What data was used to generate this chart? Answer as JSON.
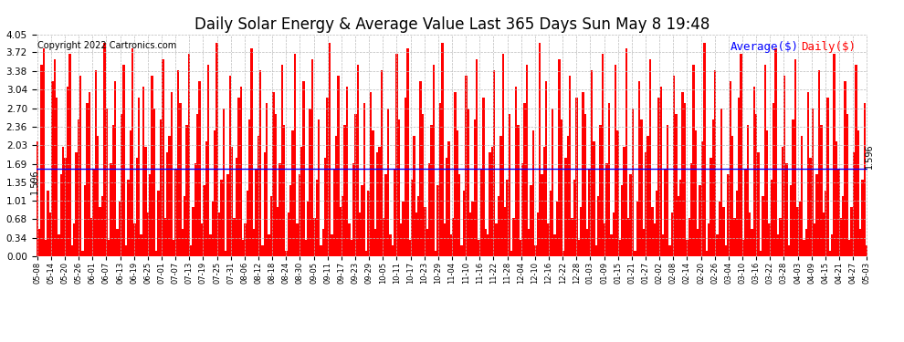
{
  "title": "Daily Solar Energy & Average Value Last 365 Days Sun May 8 19:48",
  "copyright": "Copyright 2022 Cartronics.com",
  "average_value": 1.596,
  "ylim": [
    0.0,
    4.05
  ],
  "yticks": [
    0.0,
    0.34,
    0.68,
    1.01,
    1.35,
    1.69,
    2.03,
    2.36,
    2.7,
    3.04,
    3.38,
    3.72,
    4.05
  ],
  "bar_color": "#ff0000",
  "average_line_color": "#0000ff",
  "average_label": "Average($)",
  "daily_label": "Daily($)",
  "background_color": "#ffffff",
  "grid_color": "#bbbbbb",
  "title_fontsize": 12,
  "copyright_fontsize": 7,
  "legend_fontsize": 9,
  "tick_fontsize": 7.5,
  "x_tick_labels": [
    "05-08",
    "05-14",
    "05-20",
    "05-26",
    "06-01",
    "06-07",
    "06-13",
    "06-19",
    "06-25",
    "07-01",
    "07-07",
    "07-13",
    "07-19",
    "07-25",
    "07-31",
    "08-06",
    "08-12",
    "08-18",
    "08-24",
    "08-30",
    "09-05",
    "09-11",
    "09-17",
    "09-23",
    "09-29",
    "10-05",
    "10-11",
    "10-17",
    "10-23",
    "10-29",
    "11-04",
    "11-10",
    "11-16",
    "11-22",
    "11-28",
    "12-04",
    "12-10",
    "12-16",
    "12-22",
    "12-28",
    "01-03",
    "01-09",
    "01-15",
    "01-21",
    "01-27",
    "02-02",
    "02-08",
    "02-14",
    "02-20",
    "02-26",
    "03-04",
    "03-10",
    "03-16",
    "03-22",
    "03-28",
    "04-03",
    "04-09",
    "04-15",
    "04-21",
    "04-27",
    "05-03"
  ],
  "bar_values": [
    2.1,
    0.5,
    3.5,
    3.8,
    0.3,
    1.2,
    0.8,
    3.2,
    3.6,
    2.9,
    0.4,
    1.5,
    2.0,
    1.8,
    3.1,
    3.7,
    0.2,
    0.6,
    1.9,
    2.5,
    3.3,
    0.1,
    1.3,
    2.8,
    3.0,
    0.7,
    1.6,
    3.4,
    2.2,
    0.9,
    1.1,
    3.9,
    2.7,
    0.3,
    1.7,
    2.4,
    3.2,
    0.5,
    1.0,
    2.6,
    3.5,
    0.2,
    1.4,
    2.3,
    3.8,
    0.6,
    1.8,
    2.9,
    0.4,
    3.1,
    2.0,
    0.8,
    1.5,
    3.3,
    2.7,
    0.1,
    1.2,
    2.5,
    3.6,
    0.7,
    1.9,
    2.2,
    3.0,
    0.3,
    1.6,
    3.4,
    2.8,
    0.5,
    1.1,
    2.4,
    3.7,
    0.2,
    0.9,
    1.7,
    2.6,
    3.2,
    0.6,
    1.3,
    2.1,
    3.5,
    0.4,
    1.0,
    2.3,
    3.9,
    0.8,
    1.4,
    2.7,
    0.1,
    1.5,
    3.3,
    2.0,
    0.7,
    1.8,
    2.9,
    3.1,
    0.3,
    0.6,
    1.2,
    2.5,
    3.8,
    0.5,
    1.6,
    2.2,
    3.4,
    0.2,
    1.9,
    2.8,
    0.4,
    1.1,
    3.0,
    2.6,
    0.9,
    1.7,
    3.5,
    2.4,
    0.1,
    0.8,
    1.3,
    2.3,
    3.7,
    0.6,
    1.5,
    2.0,
    3.2,
    0.3,
    1.0,
    2.7,
    3.6,
    0.7,
    1.4,
    2.5,
    0.2,
    0.5,
    1.8,
    2.9,
    3.9,
    0.4,
    1.6,
    2.2,
    3.3,
    0.9,
    1.1,
    2.4,
    3.1,
    0.6,
    0.3,
    1.7,
    2.6,
    3.5,
    0.8,
    1.3,
    2.8,
    0.1,
    1.2,
    3.0,
    2.3,
    0.5,
    1.9,
    2.0,
    3.4,
    0.7,
    1.5,
    2.7,
    0.4,
    0.2,
    1.6,
    3.7,
    2.5,
    0.6,
    1.0,
    2.9,
    3.8,
    0.3,
    1.4,
    2.2,
    0.8,
    1.1,
    3.2,
    2.6,
    0.9,
    0.5,
    1.7,
    2.4,
    3.5,
    0.1,
    1.3,
    2.8,
    3.9,
    0.6,
    1.8,
    2.1,
    0.4,
    0.7,
    3.0,
    2.3,
    1.5,
    0.2,
    1.2,
    3.3,
    2.7,
    0.8,
    1.0,
    2.5,
    3.6,
    0.3,
    1.6,
    2.9,
    0.5,
    0.4,
    1.9,
    2.0,
    3.4,
    0.6,
    1.1,
    2.2,
    3.7,
    0.9,
    1.4,
    2.6,
    0.1,
    0.7,
    3.1,
    2.4,
    0.3,
    1.7,
    2.8,
    3.5,
    0.5,
    1.3,
    2.3,
    0.2,
    0.8,
    3.9,
    1.5,
    2.0,
    3.2,
    0.6,
    1.2,
    2.7,
    0.4,
    1.0,
    3.6,
    2.5,
    0.1,
    1.8,
    2.2,
    3.3,
    0.7,
    1.4,
    2.9,
    0.3,
    0.9,
    3.0,
    2.6,
    0.5,
    1.6,
    3.4,
    2.1,
    0.2,
    1.1,
    2.4,
    3.7,
    0.6,
    1.7,
    2.8,
    0.4,
    0.8,
    3.5,
    2.3,
    0.3,
    1.3,
    2.0,
    3.8,
    0.7,
    1.5,
    2.7,
    0.1,
    1.0,
    3.2,
    2.5,
    0.5,
    1.9,
    2.2,
    3.6,
    0.9,
    0.6,
    1.2,
    2.9,
    3.1,
    0.4,
    1.6,
    2.4,
    0.2,
    0.8,
    3.3,
    2.6,
    1.1,
    1.4,
    3.0,
    2.8,
    0.3,
    0.7,
    1.7,
    3.5,
    2.3,
    0.5,
    1.3,
    2.1,
    3.9,
    0.1,
    0.6,
    1.8,
    2.5,
    3.4,
    0.4,
    1.0,
    2.7,
    0.9,
    0.2,
    1.5,
    3.2,
    2.2,
    0.7,
    1.2,
    2.9,
    3.7,
    0.3,
    1.6,
    2.4,
    0.8,
    0.5,
    3.1,
    2.6,
    1.9,
    0.1,
    1.1,
    3.5,
    2.3,
    0.6,
    1.4,
    2.8,
    3.8,
    0.4,
    0.7,
    2.0,
    3.3,
    1.7,
    0.2,
    1.3,
    2.5,
    3.6,
    0.9,
    1.0,
    2.2,
    0.3,
    0.5,
    3.0,
    1.8,
    2.7,
    0.6,
    1.5,
    3.4,
    2.4,
    0.8,
    1.2,
    2.9,
    0.1,
    0.4,
    3.7,
    2.1,
    1.6,
    0.7,
    1.1,
    3.2,
    2.6,
    0.3,
    0.9,
    1.9,
    3.5,
    2.3,
    0.5,
    1.4,
    2.8,
    0.2
  ]
}
